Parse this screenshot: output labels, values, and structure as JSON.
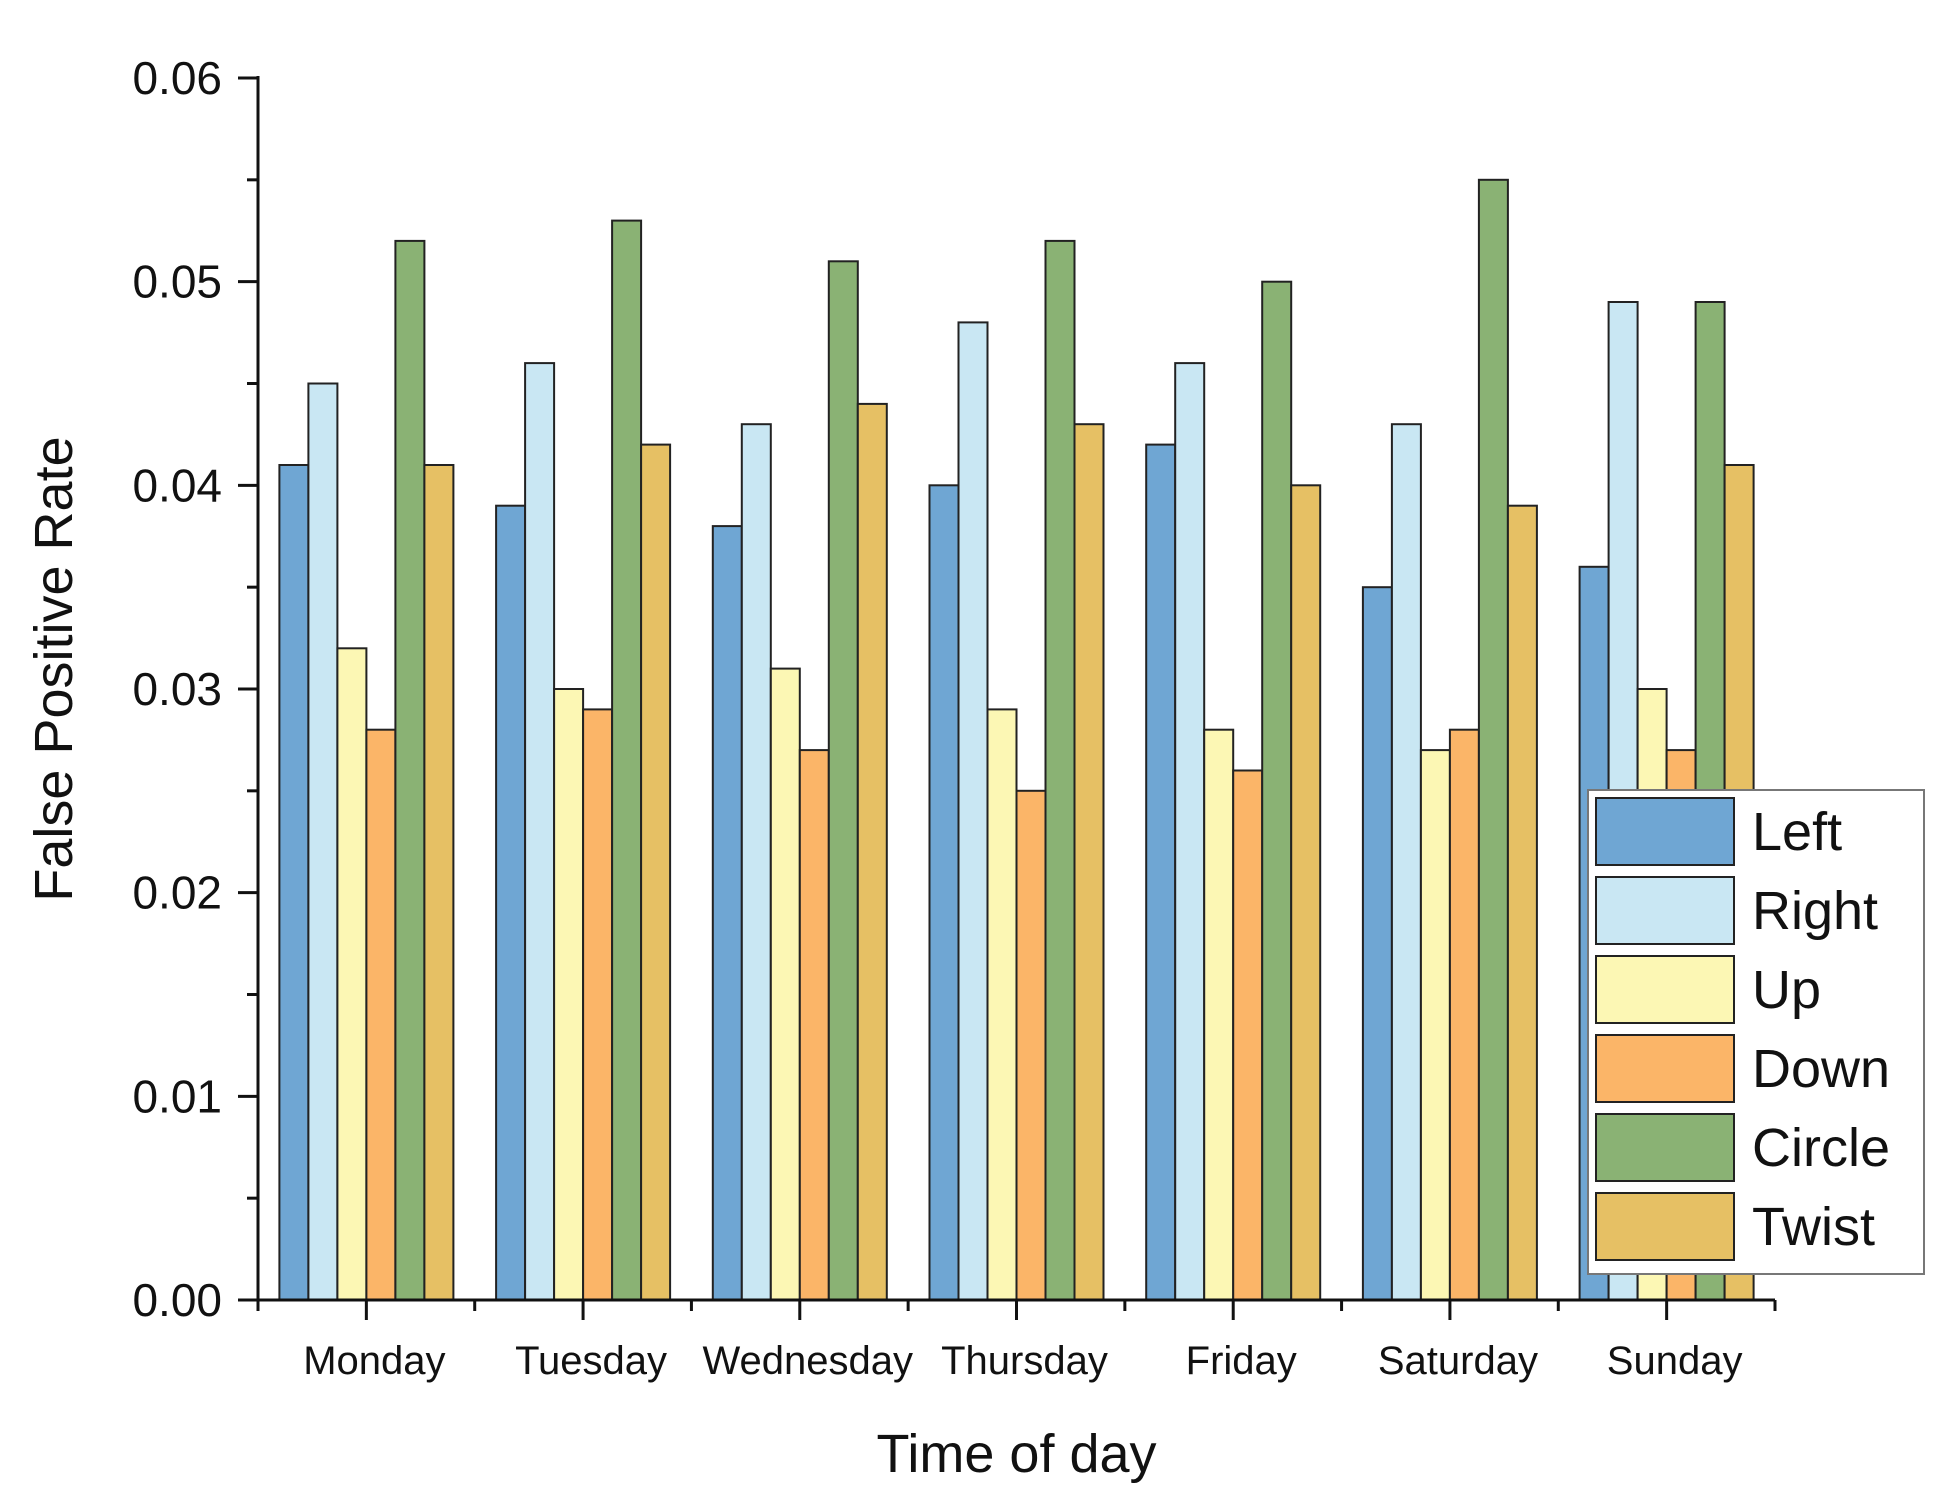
{
  "chart_data": {
    "type": "bar",
    "title": "",
    "xlabel": "Time of day",
    "ylabel": "False Positive Rate",
    "ylim": [
      0,
      0.06
    ],
    "yticks": [
      "0.00",
      "0.01",
      "0.02",
      "0.03",
      "0.04",
      "0.05",
      "0.06"
    ],
    "categories": [
      "Monday",
      "Tuesday",
      "Wednesday",
      "Thursday",
      "Friday",
      "Saturday",
      "Sunday"
    ],
    "series": [
      {
        "name": "Left",
        "color": "#6fa6d3",
        "values": [
          0.041,
          0.039,
          0.038,
          0.04,
          0.042,
          0.035,
          0.036
        ]
      },
      {
        "name": "Right",
        "color": "#c9e7f3",
        "values": [
          0.045,
          0.046,
          0.043,
          0.048,
          0.046,
          0.043,
          0.049
        ]
      },
      {
        "name": "Up",
        "color": "#fcf7b4",
        "values": [
          0.032,
          0.03,
          0.031,
          0.029,
          0.028,
          0.027,
          0.03
        ]
      },
      {
        "name": "Down",
        "color": "#fbb568",
        "values": [
          0.028,
          0.029,
          0.027,
          0.025,
          0.026,
          0.028,
          0.027
        ]
      },
      {
        "name": "Circle",
        "color": "#8ab274",
        "values": [
          0.052,
          0.053,
          0.051,
          0.052,
          0.05,
          0.055,
          0.049
        ]
      },
      {
        "name": "Twist",
        "color": "#e6c064",
        "values": [
          0.041,
          0.042,
          0.044,
          0.043,
          0.04,
          0.039,
          0.041
        ]
      }
    ],
    "legend_position": "bottom-right",
    "grid": false
  }
}
